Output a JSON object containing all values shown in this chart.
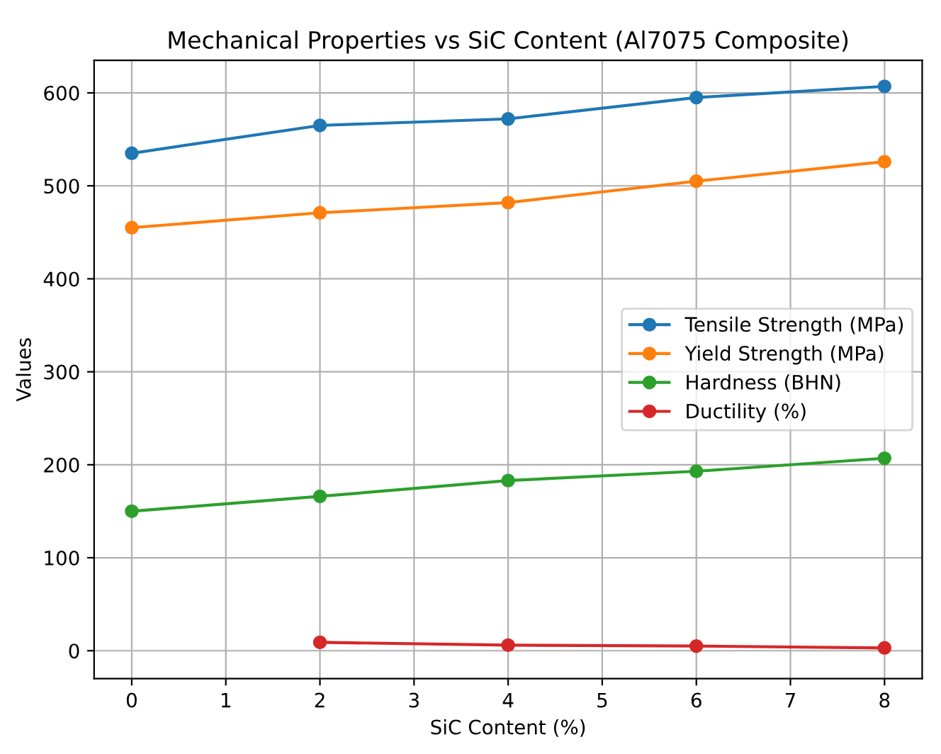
{
  "chart_data": {
    "type": "line",
    "title": "Mechanical Properties vs SiC Content (Al7075 Composite)",
    "xlabel": "SiC Content (%)",
    "ylabel": "Values",
    "x": [
      0,
      2,
      4,
      6,
      8
    ],
    "series": [
      {
        "name": "Tensile Strength (MPa)",
        "color": "#1f77b4",
        "values": [
          535,
          565,
          572,
          595,
          607
        ]
      },
      {
        "name": "Yield Strength (MPa)",
        "color": "#ff7f0e",
        "values": [
          455,
          471,
          482,
          505,
          526
        ]
      },
      {
        "name": "Hardness (BHN)",
        "color": "#2ca02c",
        "values": [
          150,
          166,
          183,
          193,
          207
        ]
      },
      {
        "name": "Ductility (%)",
        "color": "#d62728",
        "values": [
          null,
          9,
          6,
          5,
          3
        ]
      }
    ],
    "xlim": [
      -0.4,
      8.4
    ],
    "xticks": [
      0,
      1,
      2,
      3,
      4,
      5,
      6,
      7,
      8
    ],
    "ylim": [
      -30,
      635
    ],
    "yticks": [
      0,
      100,
      200,
      300,
      400,
      500,
      600
    ],
    "grid": true,
    "legend": "right",
    "marker": "circle",
    "line_style": "solid"
  }
}
